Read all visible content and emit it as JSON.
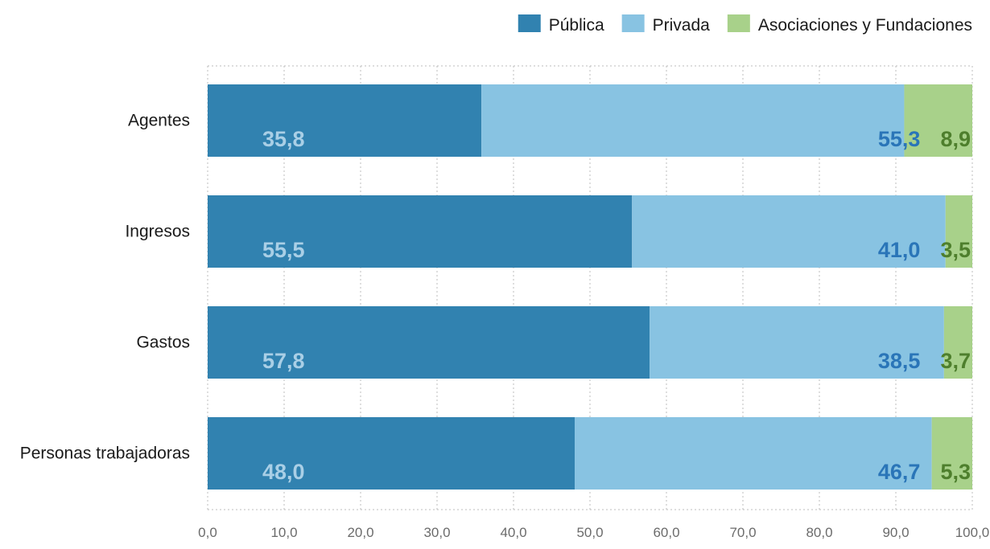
{
  "chart_data": {
    "type": "bar",
    "orientation": "horizontal",
    "stacked": true,
    "title": "",
    "xlabel": "",
    "ylabel": "",
    "xlim": [
      0,
      100
    ],
    "x_ticks": [
      0,
      10,
      20,
      30,
      40,
      50,
      60,
      70,
      80,
      90,
      100
    ],
    "x_tick_labels": [
      "0,0",
      "10,0",
      "20,0",
      "30,0",
      "40,0",
      "50,0",
      "60,0",
      "70,0",
      "80,0",
      "90,0",
      "100,0"
    ],
    "grid": true,
    "legend_position": "top-right",
    "categories": [
      "Agentes",
      "Ingresos",
      "Gastos",
      "Personas trabajadoras"
    ],
    "series": [
      {
        "name": "Pública",
        "color": "#3182b0",
        "label_color": "#a9cfe6",
        "values": [
          35.8,
          55.5,
          57.8,
          48.0
        ],
        "labels": [
          "35,8",
          "55,5",
          "57,8",
          "48,0"
        ]
      },
      {
        "name": "Privada",
        "color": "#88c3e2",
        "label_color": "#2a75b8",
        "values": [
          55.3,
          41.0,
          38.5,
          46.7
        ],
        "labels": [
          "55,3",
          "41,0",
          "38,5",
          "46,7"
        ]
      },
      {
        "name": "Asociaciones y Fundaciones",
        "color": "#a8d18a",
        "label_color": "#4e7f2d",
        "values": [
          8.9,
          3.5,
          3.7,
          5.3
        ],
        "labels": [
          "8,9",
          "3,5",
          "3,7",
          "5,3"
        ]
      }
    ]
  }
}
